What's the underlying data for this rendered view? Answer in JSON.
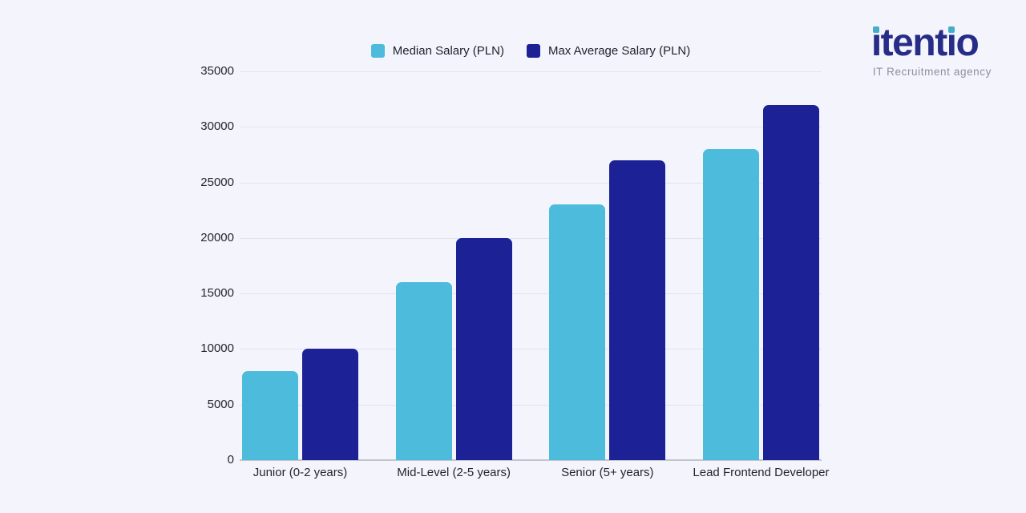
{
  "logo": {
    "brand": "itentio",
    "tagline": "IT Recruitment agency",
    "brand_color": "#272c87",
    "dot_color": "#44aec9",
    "tagline_color": "#8b909e"
  },
  "chart_data": {
    "type": "bar",
    "title": "",
    "categories": [
      "Junior (0-2 years)",
      "Mid-Level (2-5 years)",
      "Senior (5+ years)",
      "Lead Frontend Developer"
    ],
    "series": [
      {
        "name": "Median Salary (PLN)",
        "color": "#4dbbdc",
        "values": [
          8000,
          16000,
          23000,
          28000
        ]
      },
      {
        "name": "Max Average Salary (PLN)",
        "color": "#1c2196",
        "values": [
          10000,
          20000,
          27000,
          32000
        ]
      }
    ],
    "ylim": [
      0,
      35000
    ],
    "ytick_step": 5000,
    "yticks": [
      "35000",
      "30000",
      "25000",
      "20000",
      "15000",
      "10000",
      "5000",
      "0"
    ],
    "grid": true,
    "legend_position": "top-center",
    "background_color": "#f4f5fc"
  }
}
